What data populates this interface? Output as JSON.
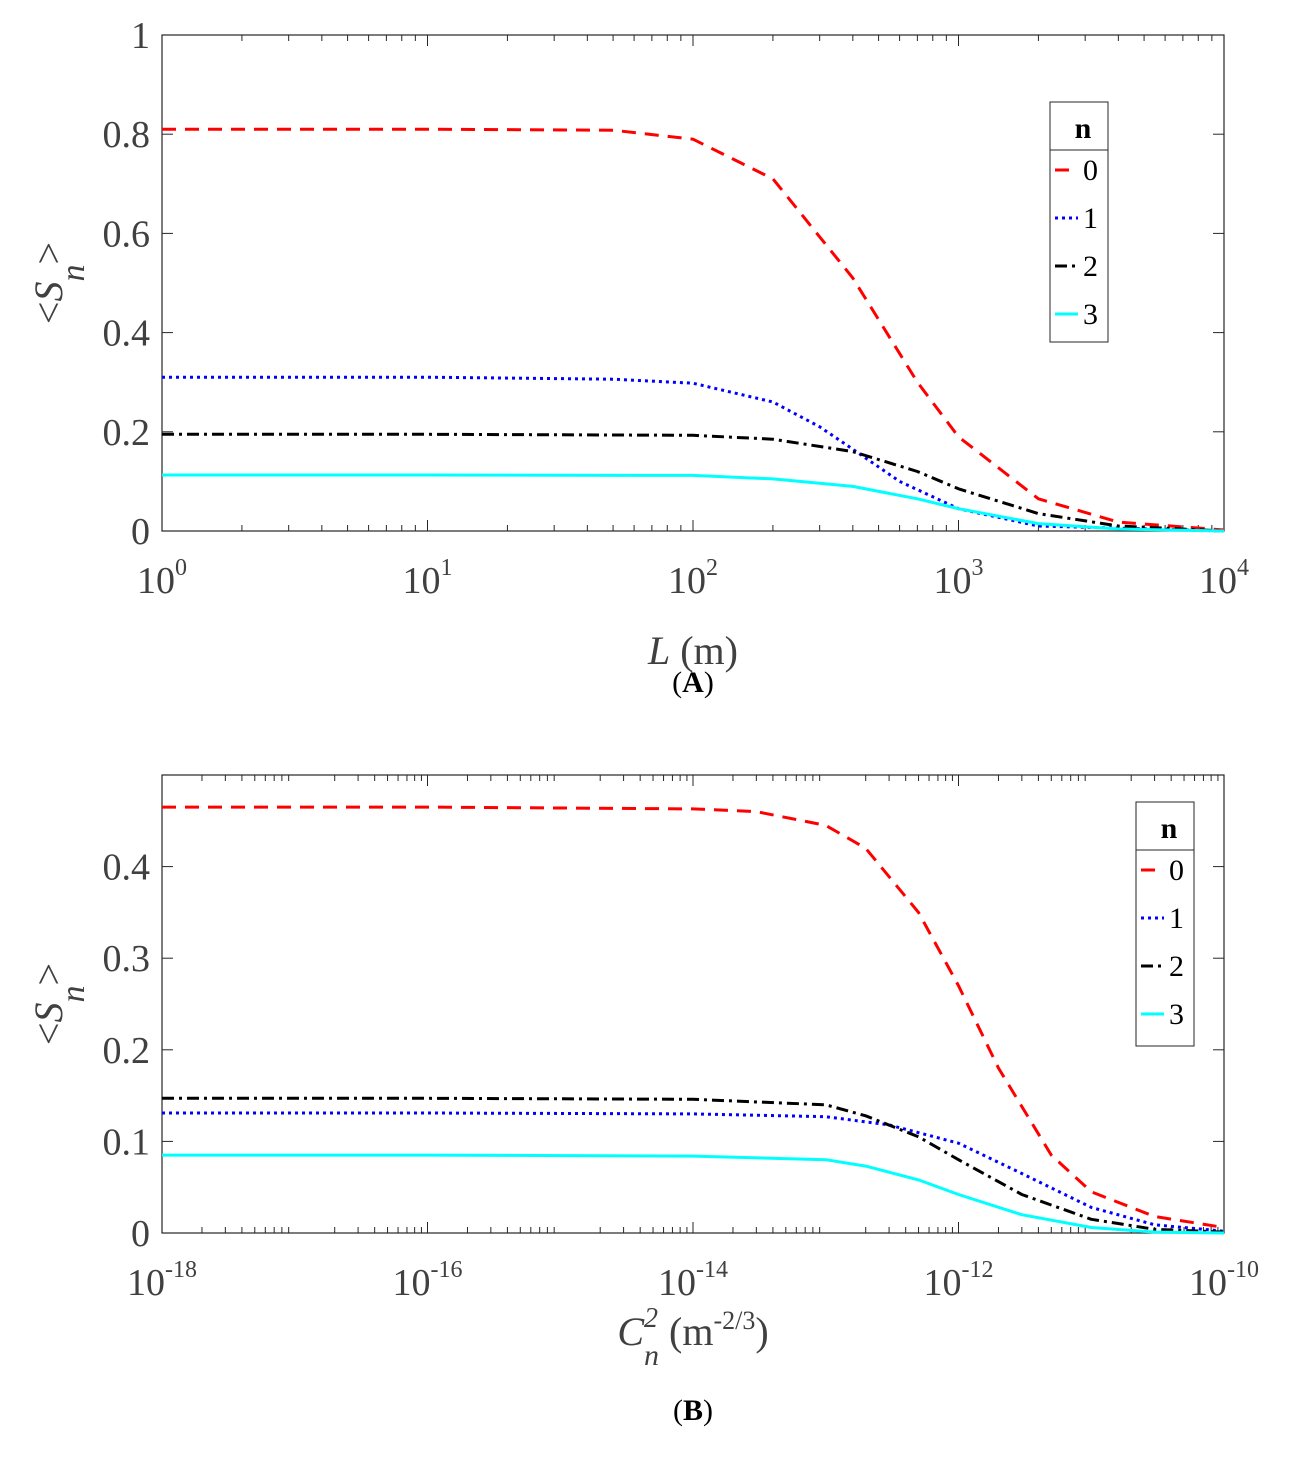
{
  "chart_data": [
    {
      "type": "line",
      "panel_label": "A",
      "xscale": "log",
      "xlim": [
        1,
        10000
      ],
      "ylim": [
        0,
        1
      ],
      "xticks": [
        {
          "base": "10",
          "exp": "0"
        },
        {
          "base": "10",
          "exp": "1"
        },
        {
          "base": "10",
          "exp": "2"
        },
        {
          "base": "10",
          "exp": "3"
        },
        {
          "base": "10",
          "exp": "4"
        }
      ],
      "yticks": [
        "0",
        "0.2",
        "0.4",
        "0.6",
        "0.8",
        "1"
      ],
      "xlabel": {
        "var": "L",
        "unit": "(m)"
      },
      "ylabel": {
        "pre": "<",
        "var": "S",
        "sub": "n",
        "post": ">"
      },
      "legend": {
        "title": "n",
        "placement": "top-right"
      },
      "series": [
        {
          "name": "0",
          "color": "#ff0000",
          "style": "dashed",
          "x": [
            1,
            10,
            50,
            100,
            200,
            400,
            700,
            1000,
            2000,
            4000,
            10000
          ],
          "y": [
            0.81,
            0.81,
            0.808,
            0.79,
            0.71,
            0.51,
            0.3,
            0.19,
            0.065,
            0.018,
            0.002
          ]
        },
        {
          "name": "1",
          "color": "#0000ff",
          "style": "dotted",
          "x": [
            1,
            10,
            50,
            100,
            200,
            300,
            400,
            600,
            1000,
            2000,
            10000
          ],
          "y": [
            0.31,
            0.31,
            0.306,
            0.298,
            0.26,
            0.21,
            0.165,
            0.1,
            0.045,
            0.01,
            0.0
          ]
        },
        {
          "name": "2",
          "color": "#000000",
          "style": "dashdot",
          "x": [
            1,
            10,
            100,
            200,
            400,
            700,
            1000,
            2000,
            4000,
            10000
          ],
          "y": [
            0.195,
            0.195,
            0.193,
            0.185,
            0.16,
            0.12,
            0.085,
            0.035,
            0.01,
            0.0
          ]
        },
        {
          "name": "3",
          "color": "#00ffff",
          "style": "solid",
          "x": [
            1,
            10,
            100,
            200,
            400,
            700,
            1000,
            2000,
            4000,
            10000
          ],
          "y": [
            0.113,
            0.113,
            0.112,
            0.105,
            0.09,
            0.065,
            0.045,
            0.015,
            0.004,
            0.0
          ]
        }
      ]
    },
    {
      "type": "line",
      "panel_label": "B",
      "xscale": "log",
      "xlim": [
        1e-18,
        1e-10
      ],
      "ylim": [
        0,
        0.5
      ],
      "xticks": [
        {
          "base": "10",
          "exp": "-18"
        },
        {
          "base": "10",
          "exp": "-16"
        },
        {
          "base": "10",
          "exp": "-14"
        },
        {
          "base": "10",
          "exp": "-12"
        },
        {
          "base": "10",
          "exp": "-10"
        }
      ],
      "yticks": [
        "0",
        "0.1",
        "0.2",
        "0.3",
        "0.4"
      ],
      "xlabel": {
        "var": "C",
        "sup": "2",
        "sub": "n",
        "unit_pre": "(m",
        "unit_sup": "-2/3",
        "unit_post": ")"
      },
      "ylabel": {
        "pre": "<",
        "var": "S",
        "sub": "n",
        "post": ">"
      },
      "legend": {
        "title": "n",
        "placement": "top-right"
      },
      "series": [
        {
          "name": "0",
          "color": "#ff0000",
          "style": "dashed",
          "x": [
            1e-18,
            1e-16,
            1e-14,
            3e-14,
            1e-13,
            2e-13,
            5e-13,
            1e-12,
            2e-12,
            5e-12,
            1e-11,
            3e-11,
            1e-10
          ],
          "y": [
            0.465,
            0.465,
            0.463,
            0.46,
            0.445,
            0.42,
            0.35,
            0.27,
            0.18,
            0.085,
            0.045,
            0.018,
            0.006
          ]
        },
        {
          "name": "1",
          "color": "#0000ff",
          "style": "dotted",
          "x": [
            1e-18,
            1e-16,
            1e-14,
            1e-13,
            3e-13,
            1e-12,
            3e-12,
            1e-11,
            3e-11,
            1e-10
          ],
          "y": [
            0.131,
            0.131,
            0.13,
            0.127,
            0.118,
            0.098,
            0.065,
            0.028,
            0.009,
            0.002
          ]
        },
        {
          "name": "2",
          "color": "#000000",
          "style": "dashdot",
          "x": [
            1e-18,
            1e-16,
            1e-14,
            1e-13,
            2e-13,
            5e-13,
            1e-12,
            3e-12,
            1e-11,
            3e-11,
            1e-10
          ],
          "y": [
            0.147,
            0.147,
            0.146,
            0.14,
            0.128,
            0.105,
            0.08,
            0.042,
            0.015,
            0.004,
            0.001
          ]
        },
        {
          "name": "3",
          "color": "#00ffff",
          "style": "solid",
          "x": [
            1e-18,
            1e-16,
            1e-14,
            1e-13,
            2e-13,
            5e-13,
            1e-12,
            3e-12,
            1e-11,
            3e-11,
            1e-10
          ],
          "y": [
            0.085,
            0.085,
            0.084,
            0.08,
            0.073,
            0.058,
            0.042,
            0.02,
            0.006,
            0.001,
            0.0
          ]
        }
      ]
    }
  ]
}
